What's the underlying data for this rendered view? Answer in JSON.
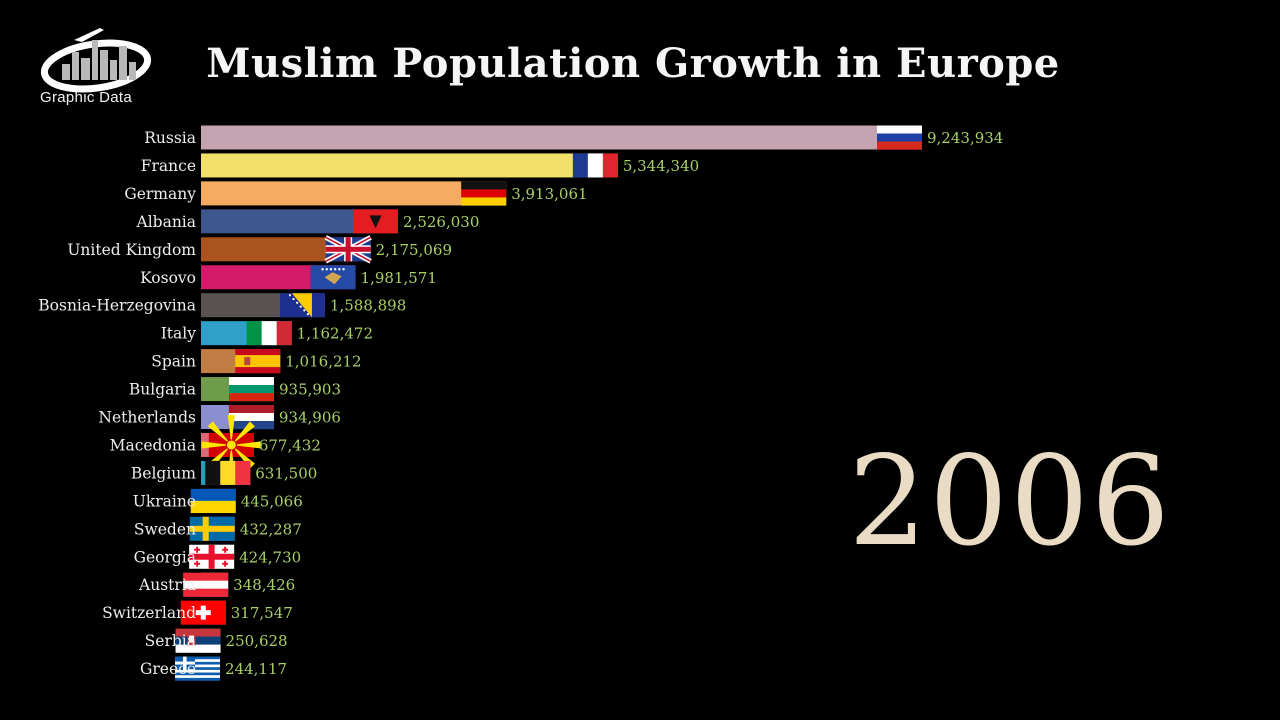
{
  "logo_text": "Graphic Data",
  "chart_data": {
    "type": "bar",
    "orientation": "horizontal",
    "title": "Muslim Population Growth in Europe",
    "year": "2006",
    "xmax": 9243934,
    "grid": false,
    "categories": [
      "Russia",
      "France",
      "Germany",
      "Albania",
      "United Kingdom",
      "Kosovo",
      "Bosnia-Herzegovina",
      "Italy",
      "Spain",
      "Bulgaria",
      "Netherlands",
      "Macedonia",
      "Belgium",
      "Ukraine",
      "Sweden",
      "Georgia",
      "Austria",
      "Switzerland",
      "Serbia",
      "Greece"
    ],
    "values": [
      9243934,
      5344340,
      3913061,
      2526030,
      2175069,
      1981571,
      1588898,
      1162472,
      1016212,
      935903,
      934906,
      677432,
      631500,
      445066,
      432287,
      424730,
      348426,
      317547,
      250628,
      244117
    ],
    "value_labels": [
      "9,243,934",
      "5,344,340",
      "3,913,061",
      "2,526,030",
      "2,175,069",
      "1,981,571",
      "1,588,898",
      "1,162,472",
      "1,016,212",
      "935,903",
      "934,906",
      "677,432",
      "631,500",
      "445,066",
      "432,287",
      "424,730",
      "348,426",
      "317,547",
      "250,628",
      "244,117"
    ],
    "colors": [
      "#c4a4b1",
      "#f3e06a",
      "#f6ab62",
      "#3e578e",
      "#a9541e",
      "#d61a6a",
      "#5a5352",
      "#2fa0c9",
      "#c17d43",
      "#6f9c4b",
      "#8b8fd0",
      "#da6a78",
      "#26a0b8",
      "#d9746f",
      "#9482c6",
      "#3a8c6d",
      "#8cc170",
      "#5a9c5c",
      "#2aa3a7",
      "#d9694e"
    ],
    "flags": [
      "russia-flag-icon",
      "france-flag-icon",
      "germany-flag-icon",
      "albania-flag-icon",
      "united-kingdom-flag-icon",
      "kosovo-flag-icon",
      "bosnia-herzegovina-flag-icon",
      "italy-flag-icon",
      "spain-flag-icon",
      "bulgaria-flag-icon",
      "netherlands-flag-icon",
      "macedonia-flag-icon",
      "belgium-flag-icon",
      "ukraine-flag-icon",
      "sweden-flag-icon",
      "georgia-flag-icon",
      "austria-flag-icon",
      "switzerland-flag-icon",
      "serbia-flag-icon",
      "greece-flag-icon"
    ]
  }
}
